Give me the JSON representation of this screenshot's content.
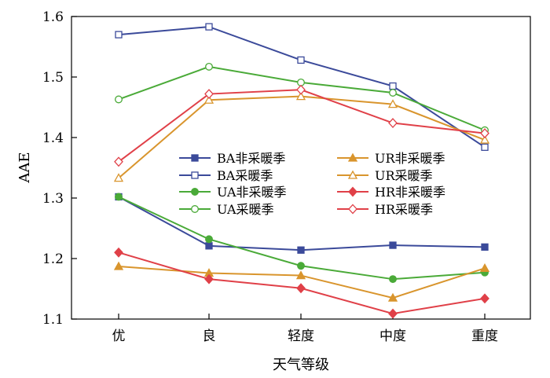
{
  "chart_data": {
    "type": "line",
    "xlabel": "天气等级",
    "ylabel": "AAE",
    "categories": [
      "优",
      "良",
      "轻度",
      "中度",
      "重度"
    ],
    "ylim": [
      1.1,
      1.6
    ],
    "yticks": [
      "1.1",
      "1.2",
      "1.3",
      "1.4",
      "1.5",
      "1.6"
    ],
    "legend_position": "center",
    "series": [
      {
        "name": "BA非采暖季",
        "color": "#3b4a9a",
        "marker": "square",
        "filled": true,
        "values": [
          1.302,
          1.221,
          1.214,
          1.222,
          1.219
        ]
      },
      {
        "name": "BA采暖季",
        "color": "#3b4a9a",
        "marker": "square",
        "filled": false,
        "values": [
          1.57,
          1.583,
          1.528,
          1.485,
          1.384
        ]
      },
      {
        "name": "UA非采暖季",
        "color": "#4aaa38",
        "marker": "circle",
        "filled": true,
        "values": [
          1.302,
          1.232,
          1.188,
          1.166,
          1.177
        ]
      },
      {
        "name": "UA采暖季",
        "color": "#4aaa38",
        "marker": "circle",
        "filled": false,
        "values": [
          1.463,
          1.517,
          1.491,
          1.474,
          1.412
        ]
      },
      {
        "name": "UR非采暖季",
        "color": "#d9952d",
        "marker": "triangle",
        "filled": true,
        "values": [
          1.187,
          1.176,
          1.172,
          1.135,
          1.184
        ]
      },
      {
        "name": "UR采暖季",
        "color": "#d9952d",
        "marker": "triangle",
        "filled": false,
        "values": [
          1.333,
          1.462,
          1.468,
          1.455,
          1.396
        ]
      },
      {
        "name": "HR非采暖季",
        "color": "#e04048",
        "marker": "diamond",
        "filled": true,
        "values": [
          1.21,
          1.166,
          1.151,
          1.109,
          1.134
        ]
      },
      {
        "name": "HR采暖季",
        "color": "#e04048",
        "marker": "diamond",
        "filled": false,
        "values": [
          1.36,
          1.472,
          1.479,
          1.424,
          1.407
        ]
      }
    ]
  }
}
